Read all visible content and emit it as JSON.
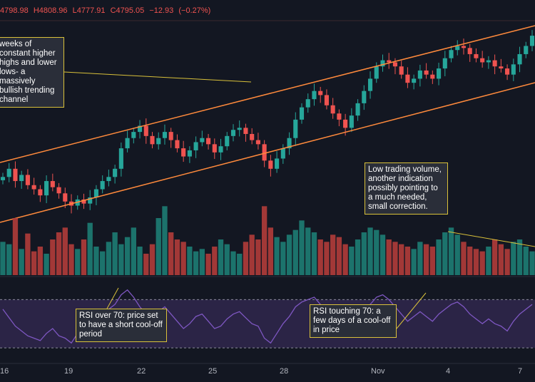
{
  "header": {
    "values": [
      "4798.98",
      "H4808.96",
      "L4777.91",
      "C4795.05",
      "−12.93",
      "(−0.27%)"
    ],
    "color": "#ef5350"
  },
  "annotations": {
    "channel": "weeks of constant higher highs and lower lows- a massively bullish trending channel",
    "volume": "Low trading volume, another indication possibly pointing to a much needed, small correction.",
    "rsi_over": "RSI over 70: price set to have a short cool-off period",
    "rsi_touch": "RSI touching 70: a few days of a cool-off in price"
  },
  "colors": {
    "background": "#131722",
    "up": "#26a69a",
    "down": "#ef5350",
    "channel": "#ff8a3c",
    "note_border": "#d9c13a",
    "rsi_line": "#7e57c2",
    "rsi_band": "#2b2446"
  },
  "chart_data": {
    "type": "candlestick",
    "x_ticks": [
      "16",
      "19",
      "22",
      "25",
      "28",
      "Nov",
      "4",
      "7"
    ],
    "price": {
      "series": [
        {
          "name": "close",
          "values": [
            4450,
            4470,
            4440,
            4455,
            4430,
            4420,
            4405,
            4440,
            4425,
            4410,
            4390,
            4380,
            4395,
            4385,
            4400,
            4420,
            4440,
            4450,
            4470,
            4520,
            4545,
            4560,
            4575,
            4550,
            4530,
            4545,
            4560,
            4540,
            4520,
            4500,
            4515,
            4535,
            4545,
            4530,
            4510,
            4525,
            4550,
            4565,
            4570,
            4555,
            4540,
            4530,
            4490,
            4470,
            4495,
            4520,
            4545,
            4590,
            4620,
            4640,
            4660,
            4650,
            4625,
            4605,
            4590,
            4570,
            4600,
            4630,
            4660,
            4690,
            4720,
            4735,
            4730,
            4720,
            4700,
            4680,
            4690,
            4710,
            4700,
            4690,
            4715,
            4740,
            4760,
            4770,
            4765,
            4750,
            4740,
            4730,
            4735,
            4720,
            4715,
            4700,
            4725,
            4750,
            4770,
            4795
          ]
        }
      ]
    },
    "volume": {
      "values": [
        28,
        26,
        48,
        22,
        35,
        20,
        24,
        18,
        30,
        36,
        40,
        26,
        22,
        30,
        44,
        24,
        20,
        28,
        36,
        26,
        32,
        40,
        24,
        18,
        26,
        48,
        58,
        36,
        30,
        28,
        24,
        20,
        22,
        18,
        24,
        30,
        26,
        20,
        18,
        28,
        34,
        30,
        58,
        40,
        32,
        28,
        34,
        38,
        46,
        40,
        36,
        30,
        28,
        34,
        32,
        26,
        24,
        30,
        36,
        40,
        38,
        34,
        30,
        28,
        26,
        24,
        22,
        28,
        26,
        24,
        30,
        36,
        40,
        34,
        28,
        24,
        22,
        20,
        24,
        30,
        26,
        22,
        28,
        30,
        24,
        20
      ]
    },
    "rsi": {
      "values": [
        62,
        55,
        48,
        44,
        40,
        38,
        36,
        42,
        46,
        40,
        38,
        34,
        42,
        40,
        46,
        52,
        58,
        62,
        66,
        74,
        78,
        72,
        64,
        58,
        55,
        60,
        64,
        58,
        52,
        46,
        50,
        56,
        58,
        52,
        46,
        48,
        54,
        58,
        60,
        55,
        50,
        48,
        38,
        34,
        42,
        50,
        56,
        64,
        68,
        70,
        72,
        66,
        58,
        52,
        48,
        44,
        52,
        58,
        62,
        66,
        72,
        74,
        70,
        64,
        58,
        52,
        56,
        60,
        56,
        52,
        58,
        62,
        66,
        68,
        64,
        58,
        54,
        50,
        54,
        50,
        48,
        44,
        52,
        58,
        62,
        66
      ],
      "levels": [
        30,
        70
      ],
      "ylim": [
        20,
        85
      ]
    },
    "grid": false
  }
}
